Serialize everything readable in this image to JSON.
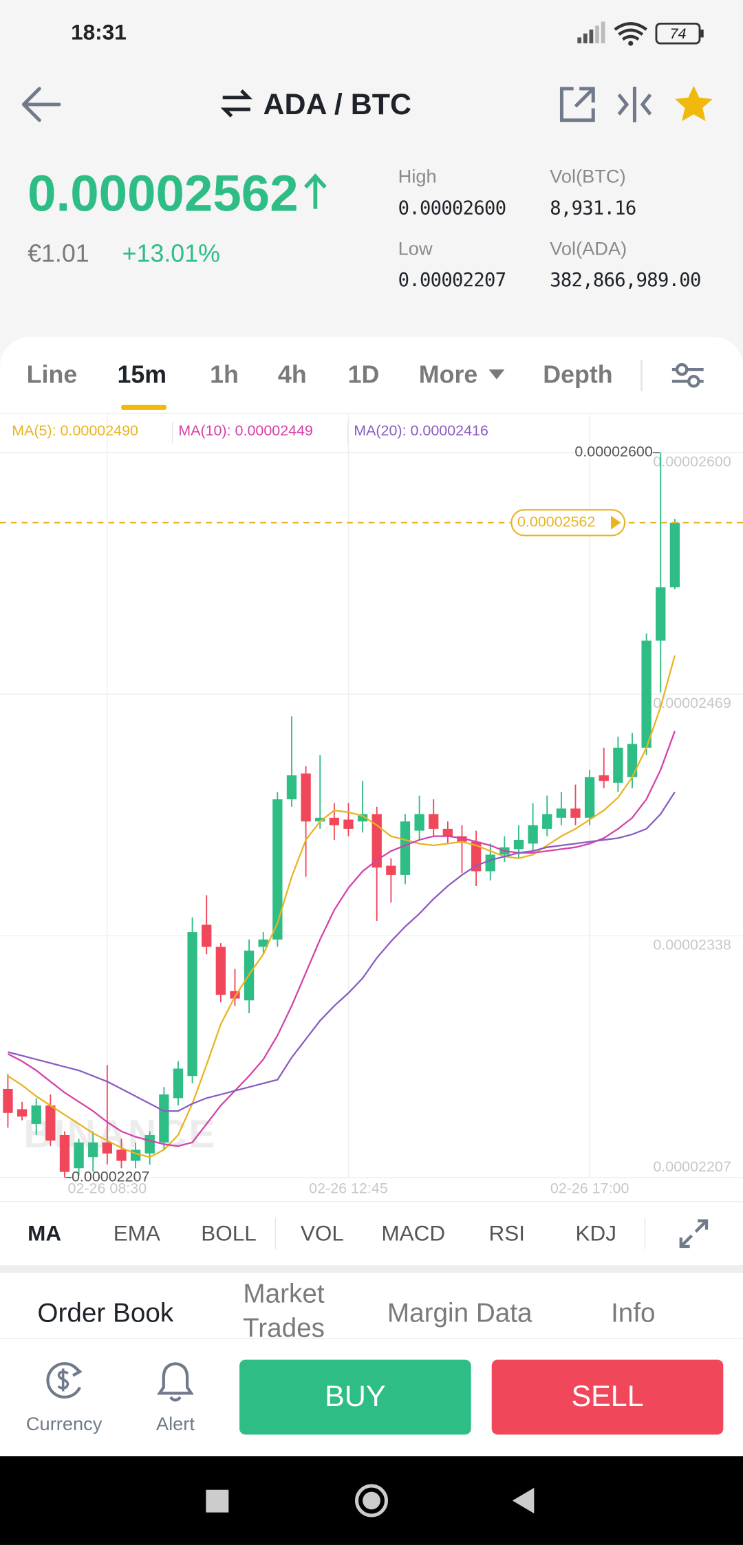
{
  "status_bar": {
    "time": "18:31",
    "battery": "74"
  },
  "header": {
    "pair": "ADA / BTC"
  },
  "ticker": {
    "price": "0.00002562",
    "fiat": "€1.01",
    "change": "+13.01%",
    "stats": [
      {
        "label": "High",
        "value": "0.00002600"
      },
      {
        "label": "Vol(BTC)",
        "value": "8,931.16"
      },
      {
        "label": "Low",
        "value": "0.00002207"
      },
      {
        "label": "Vol(ADA)",
        "value": "382,866,989.00"
      }
    ]
  },
  "intervals": [
    "Line",
    "15m",
    "1h",
    "4h",
    "1D",
    "More",
    "Depth"
  ],
  "chart_data": {
    "type": "candlestick",
    "categories": [
      null,
      null,
      null,
      null,
      null,
      null,
      null,
      "02-26 08:30",
      null,
      null,
      null,
      null,
      null,
      null,
      null,
      null,
      null,
      null,
      null,
      null,
      null,
      null,
      null,
      null,
      "02-26 12:45",
      null,
      null,
      null,
      null,
      null,
      null,
      null,
      null,
      null,
      null,
      null,
      null,
      null,
      null,
      null,
      null,
      "02-26 17:00",
      null,
      null,
      null,
      null,
      null,
      null
    ],
    "ohlc": {
      "open": [
        2.255e-05,
        2.244e-05,
        2.236e-05,
        2.246e-05,
        2.23e-05,
        2.212e-05,
        2.218e-05,
        2.226e-05,
        2.222e-05,
        2.216e-05,
        2.22e-05,
        2.226e-05,
        2.25e-05,
        2.262e-05,
        2.344e-05,
        2.332e-05,
        2.308e-05,
        2.303e-05,
        2.332e-05,
        2.336e-05,
        2.412e-05,
        2.426e-05,
        2.4e-05,
        2.402e-05,
        2.401e-05,
        2.4e-05,
        2.404e-05,
        2.376e-05,
        2.371e-05,
        2.395e-05,
        2.404e-05,
        2.396e-05,
        2.392e-05,
        2.389e-05,
        2.373e-05,
        2.382e-05,
        2.385e-05,
        2.388e-05,
        2.396e-05,
        2.402e-05,
        2.407e-05,
        2.402e-05,
        2.425e-05,
        2.421e-05,
        2.424e-05,
        2.44e-05,
        2.498e-05,
        2.527e-05
      ],
      "high": [
        2.263e-05,
        2.248e-05,
        2.25e-05,
        2.252e-05,
        2.232e-05,
        2.228e-05,
        2.232e-05,
        2.268e-05,
        2.228e-05,
        2.226e-05,
        2.232e-05,
        2.256e-05,
        2.27e-05,
        2.348e-05,
        2.36e-05,
        2.334e-05,
        2.32e-05,
        2.336e-05,
        2.34e-05,
        2.416e-05,
        2.457e-05,
        2.43e-05,
        2.436e-05,
        2.41e-05,
        2.41e-05,
        2.422e-05,
        2.408e-05,
        2.38e-05,
        2.404e-05,
        2.414e-05,
        2.412e-05,
        2.4e-05,
        2.398e-05,
        2.395e-05,
        2.388e-05,
        2.392e-05,
        2.398e-05,
        2.41e-05,
        2.414e-05,
        2.416e-05,
        2.42e-05,
        2.428e-05,
        2.44e-05,
        2.446e-05,
        2.448e-05,
        2.502e-05,
        2.6e-05,
        2.564e-05
      ],
      "low": [
        2.234e-05,
        2.238e-05,
        2.23e-05,
        2.224e-05,
        2.207e-05,
        2.208e-05,
        2.21e-05,
        2.214e-05,
        2.212e-05,
        2.212e-05,
        2.214e-05,
        2.222e-05,
        2.246e-05,
        2.258e-05,
        2.328e-05,
        2.302e-05,
        2.3e-05,
        2.296e-05,
        2.328e-05,
        2.332e-05,
        2.408e-05,
        2.37e-05,
        2.396e-05,
        2.39e-05,
        2.392e-05,
        2.394e-05,
        2.346e-05,
        2.356e-05,
        2.366e-05,
        2.39e-05,
        2.392e-05,
        2.388e-05,
        2.372e-05,
        2.365e-05,
        2.368e-05,
        2.378e-05,
        2.38e-05,
        2.384e-05,
        2.392e-05,
        2.398e-05,
        2.398e-05,
        2.398e-05,
        2.418e-05,
        2.416e-05,
        2.418e-05,
        2.436e-05,
        2.47e-05,
        2.526e-05
      ],
      "close": [
        2.242e-05,
        2.24e-05,
        2.246e-05,
        2.227e-05,
        2.21e-05,
        2.226e-05,
        2.226e-05,
        2.22e-05,
        2.216e-05,
        2.222e-05,
        2.23e-05,
        2.252e-05,
        2.266e-05,
        2.34e-05,
        2.332e-05,
        2.306e-05,
        2.304e-05,
        2.33e-05,
        2.336e-05,
        2.412e-05,
        2.425e-05,
        2.4e-05,
        2.402e-05,
        2.398e-05,
        2.396e-05,
        2.404e-05,
        2.375e-05,
        2.371e-05,
        2.4e-05,
        2.404e-05,
        2.396e-05,
        2.392e-05,
        2.389e-05,
        2.373e-05,
        2.382e-05,
        2.386e-05,
        2.39e-05,
        2.398e-05,
        2.404e-05,
        2.407e-05,
        2.402e-05,
        2.424e-05,
        2.422e-05,
        2.44e-05,
        2.442e-05,
        2.498e-05,
        2.527e-05,
        2.562e-05
      ]
    },
    "up_color": "#2ebd85",
    "down_color": "#f0475b",
    "series": [
      {
        "name": "MA(5): 0.00002490",
        "color": "#e9b420",
        "values": [
          2.262e-05,
          2.257e-05,
          2.251e-05,
          2.246e-05,
          2.241e-05,
          2.236e-05,
          2.231e-05,
          2.227e-05,
          2.223e-05,
          2.22e-05,
          2.218e-05,
          2.222e-05,
          2.23e-05,
          2.247e-05,
          2.268e-05,
          2.29e-05,
          2.305e-05,
          2.317e-05,
          2.328e-05,
          2.345e-05,
          2.37e-05,
          2.39e-05,
          2.4e-05,
          2.406e-05,
          2.405e-05,
          2.403e-05,
          2.398e-05,
          2.392e-05,
          2.39e-05,
          2.388e-05,
          2.387e-05,
          2.388e-05,
          2.389e-05,
          2.387e-05,
          2.384e-05,
          2.381e-05,
          2.38e-05,
          2.382e-05,
          2.387e-05,
          2.392e-05,
          2.396e-05,
          2.401e-05,
          2.406e-05,
          2.413e-05,
          2.424e-05,
          2.44e-05,
          2.462e-05,
          2.49e-05
        ]
      },
      {
        "name": "MA(10): 0.00002449",
        "color": "#d541a8",
        "values": [
          2.274e-05,
          2.27e-05,
          2.265e-05,
          2.259e-05,
          2.253e-05,
          2.248e-05,
          2.243e-05,
          2.237e-05,
          2.232e-05,
          2.229e-05,
          2.227e-05,
          2.225e-05,
          2.224e-05,
          2.226e-05,
          2.236e-05,
          2.246e-05,
          2.254e-05,
          2.262e-05,
          2.271e-05,
          2.284e-05,
          2.3e-05,
          2.318e-05,
          2.336e-05,
          2.352e-05,
          2.364e-05,
          2.373e-05,
          2.379e-05,
          2.384e-05,
          2.387e-05,
          2.39e-05,
          2.392e-05,
          2.392e-05,
          2.391e-05,
          2.389e-05,
          2.387e-05,
          2.384e-05,
          2.383e-05,
          2.383e-05,
          2.384e-05,
          2.385e-05,
          2.386e-05,
          2.388e-05,
          2.391e-05,
          2.396e-05,
          2.402e-05,
          2.412e-05,
          2.428e-05,
          2.449e-05
        ]
      },
      {
        "name": "MA(20): 0.00002416",
        "color": "#8a5cc2",
        "values": [
          2.275e-05,
          2.273e-05,
          2.271e-05,
          2.269e-05,
          2.267e-05,
          2.265e-05,
          2.262e-05,
          2.259e-05,
          2.255e-05,
          2.251e-05,
          2.247e-05,
          2.243e-05,
          2.243e-05,
          2.247e-05,
          2.25e-05,
          2.252e-05,
          2.254e-05,
          2.256e-05,
          2.258e-05,
          2.26e-05,
          2.272e-05,
          2.282e-05,
          2.292e-05,
          2.3e-05,
          2.307e-05,
          2.315e-05,
          2.326e-05,
          2.335e-05,
          2.343e-05,
          2.35e-05,
          2.358e-05,
          2.365e-05,
          2.371e-05,
          2.376e-05,
          2.379e-05,
          2.381e-05,
          2.383e-05,
          2.384e-05,
          2.386e-05,
          2.387e-05,
          2.388e-05,
          2.389e-05,
          2.39e-05,
          2.391e-05,
          2.393e-05,
          2.396e-05,
          2.404e-05,
          2.416e-05
        ]
      }
    ],
    "ylim": [
      2.207e-05,
      2.621e-05
    ],
    "yticks": [
      {
        "value": 2.6e-05,
        "label": "0.00002600"
      },
      {
        "value": 2.469e-05,
        "label": "0.00002469"
      },
      {
        "value": 2.338e-05,
        "label": "0.00002338"
      },
      {
        "value": 2.207e-05,
        "label": "0.00002207"
      }
    ],
    "grid": true,
    "high_marker": {
      "value": 2.6e-05,
      "label": "0.00002600"
    },
    "low_marker": {
      "value": 2.207e-05,
      "label": "0.00002207"
    },
    "last_price": {
      "value": 2.562e-05,
      "label": "0.00002562"
    },
    "watermark": "BINANCE"
  },
  "indicators": [
    "MA",
    "EMA",
    "BOLL",
    "VOL",
    "MACD",
    "RSI",
    "KDJ"
  ],
  "bottom_tabs": [
    "Order Book",
    "Market Trades",
    "Margin Data",
    "Info"
  ],
  "actions": {
    "currency": "Currency",
    "alert": "Alert",
    "buy": "BUY",
    "sell": "SELL"
  }
}
